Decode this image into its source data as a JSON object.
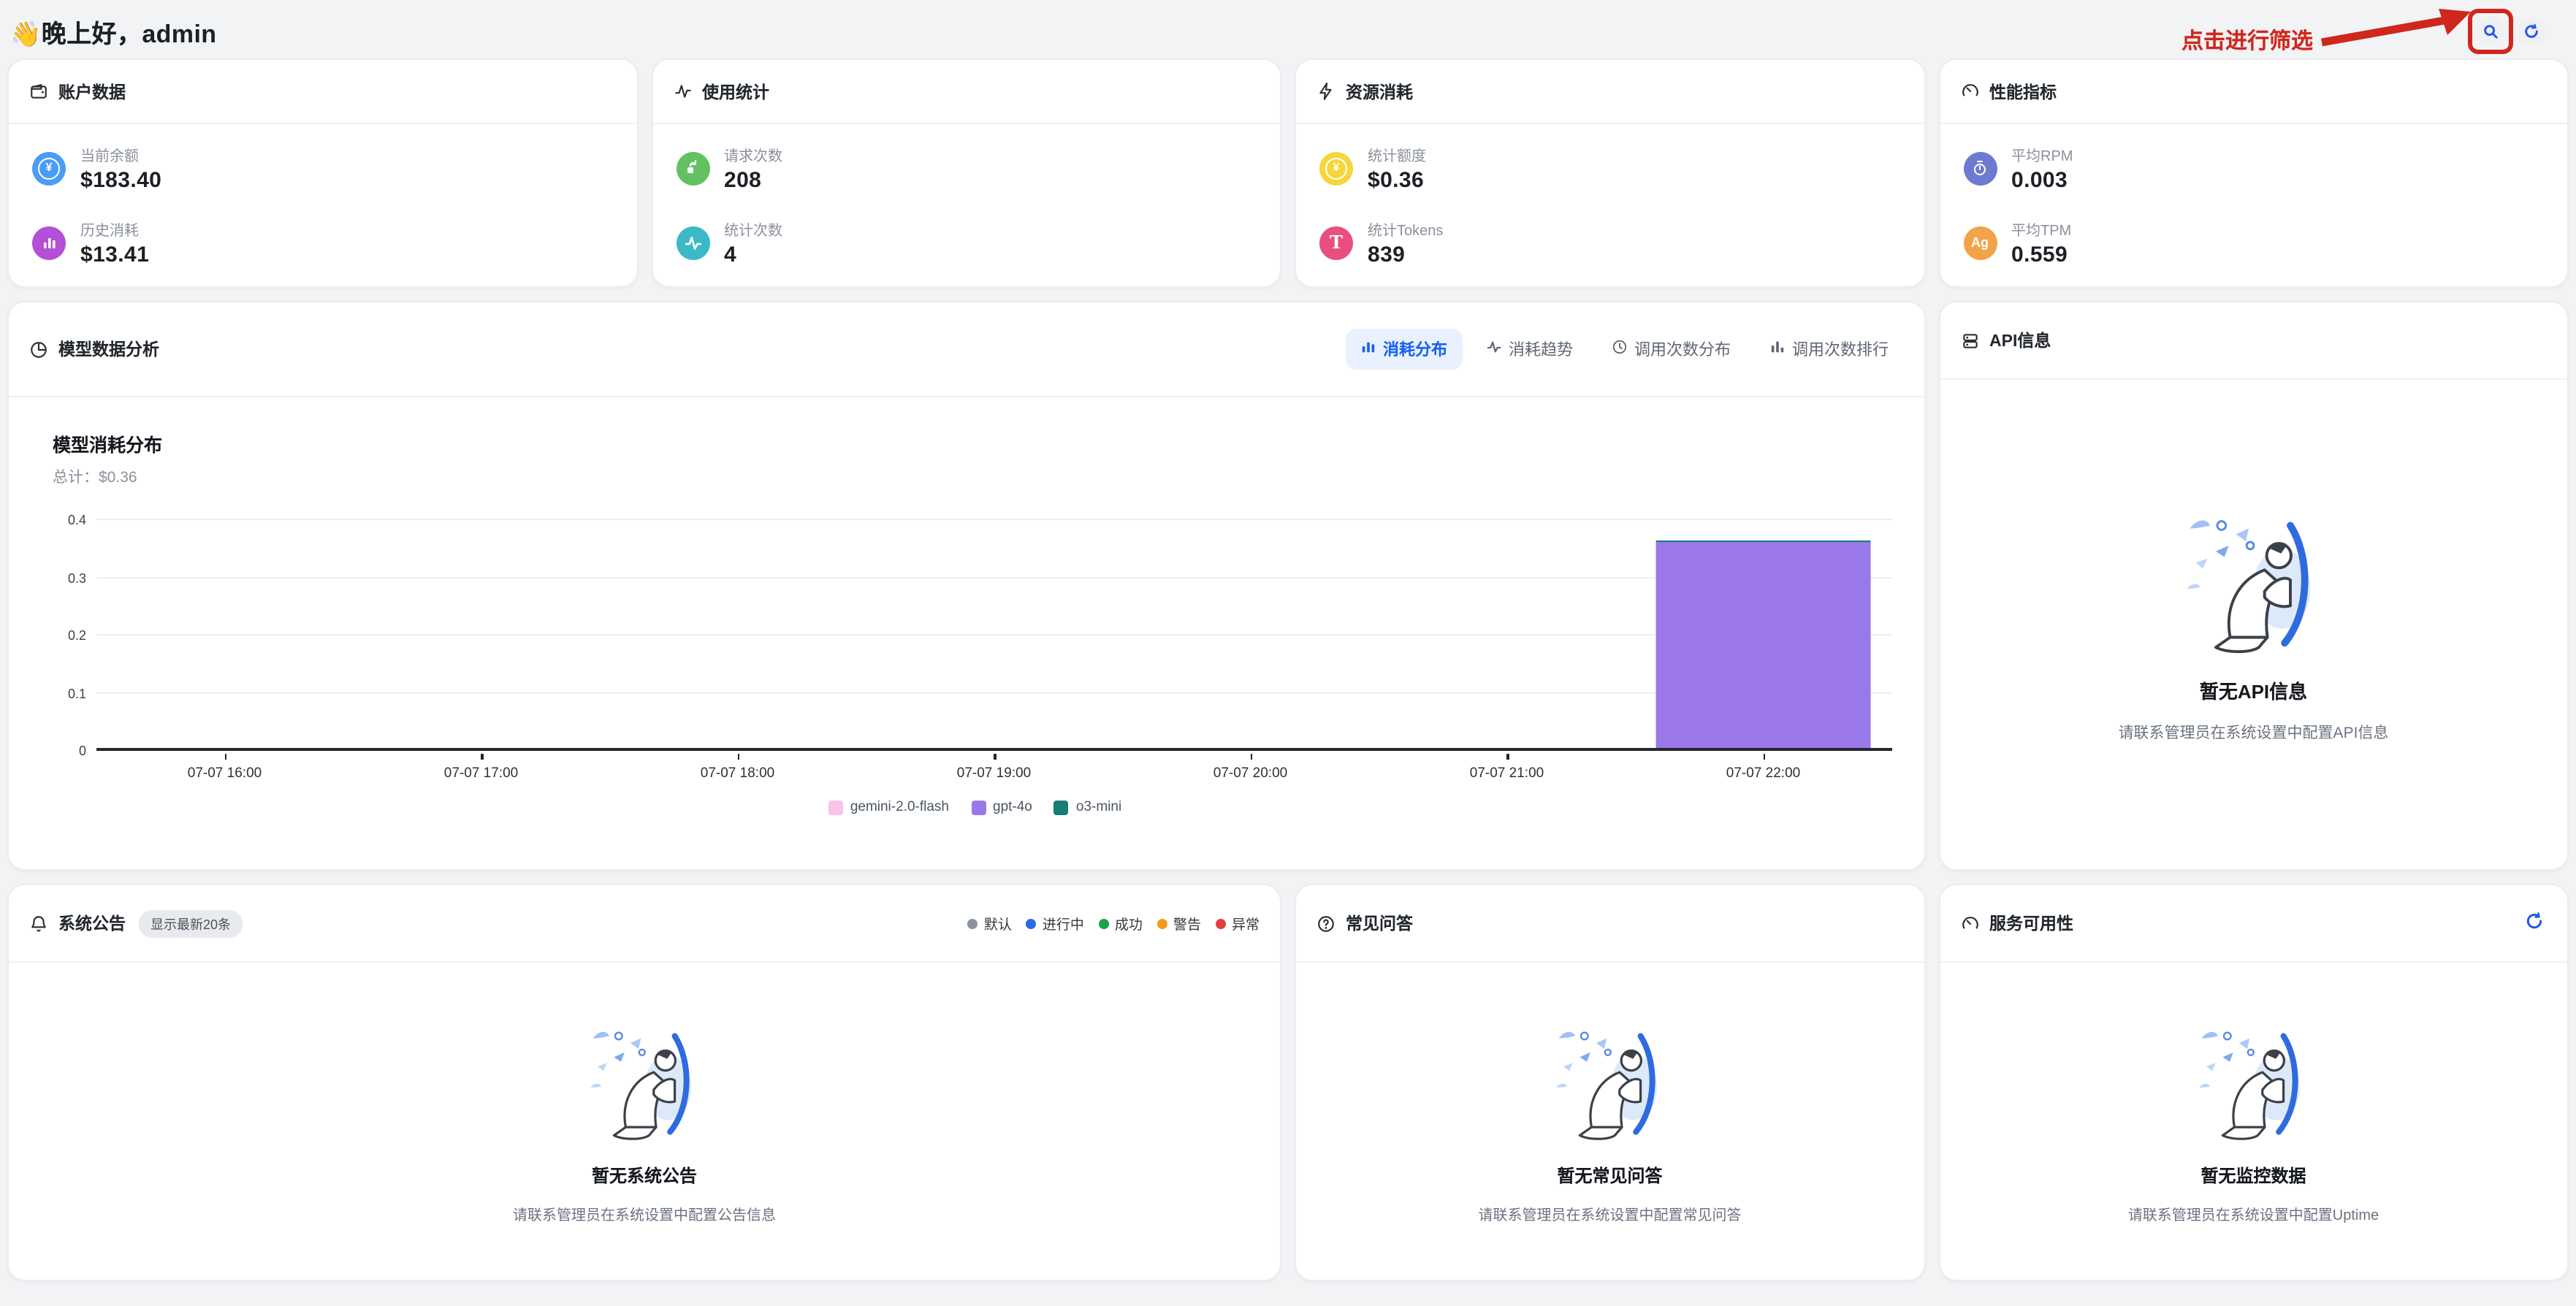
{
  "header": {
    "greeting": "👋晚上好，admin"
  },
  "annotation": {
    "label": "点击进行筛选",
    "color": "#d0271c"
  },
  "stat_cards": [
    {
      "title": "账户数据",
      "icon": "wallet-icon",
      "items": [
        {
          "icon": "currency-circle-icon",
          "icon_bg": "#4b9cf5",
          "label": "当前余额",
          "value": "$183.40",
          "glyph": "¥"
        },
        {
          "icon": "bar-chart-icon",
          "icon_bg": "#b44fd8",
          "label": "历史消耗",
          "value": "$13.41"
        }
      ]
    },
    {
      "title": "使用统计",
      "icon": "activity-icon",
      "items": [
        {
          "icon": "request-arrow-icon",
          "icon_bg": "#63c25f",
          "label": "请求次数",
          "value": "208"
        },
        {
          "icon": "pulse-icon",
          "icon_bg": "#3bbac6",
          "label": "统计次数",
          "value": "4"
        }
      ]
    },
    {
      "title": "资源消耗",
      "icon": "lightning-icon",
      "items": [
        {
          "icon": "coin-circle-icon",
          "icon_bg": "#f6d63c",
          "label": "统计额度",
          "value": "$0.36",
          "glyph": "¥"
        },
        {
          "icon": "token-icon",
          "icon_bg": "#e94f7e",
          "label": "统计Tokens",
          "value": "839",
          "glyph": "T"
        }
      ]
    },
    {
      "title": "性能指标",
      "icon": "gauge-icon",
      "items": [
        {
          "icon": "stopwatch-icon",
          "icon_bg": "#6d7ad2",
          "label": "平均RPM",
          "value": "0.003"
        },
        {
          "icon": "ag-icon",
          "icon_bg": "#f2a348",
          "label": "平均TPM",
          "value": "0.559",
          "glyph": "Ag"
        }
      ]
    }
  ],
  "analysis": {
    "title": "模型数据分析",
    "tabs": [
      {
        "label": "消耗分布",
        "active": true
      },
      {
        "label": "消耗趋势",
        "active": false
      },
      {
        "label": "调用次数分布",
        "active": false
      },
      {
        "label": "调用次数排行",
        "active": false
      }
    ],
    "active_color": "#1861f2"
  },
  "chart_data": {
    "type": "bar",
    "stacked": true,
    "title": "模型消耗分布",
    "subtitle": "总计：$0.36",
    "categories": [
      "07-07 16:00",
      "07-07 17:00",
      "07-07 18:00",
      "07-07 19:00",
      "07-07 20:00",
      "07-07 21:00",
      "07-07 22:00"
    ],
    "series": [
      {
        "name": "gemini-2.0-flash",
        "color": "#f8c3e6",
        "values": [
          0,
          0,
          0,
          0,
          0,
          0,
          0
        ]
      },
      {
        "name": "gpt-4o",
        "color": "#9b78e8",
        "values": [
          0,
          0,
          0,
          0,
          0,
          0,
          0.357
        ]
      },
      {
        "name": "o3-mini",
        "color": "#177d76",
        "values": [
          0,
          0,
          0,
          0,
          0,
          0,
          0.003
        ]
      }
    ],
    "xlabel": "",
    "ylabel": "",
    "ylim": [
      0,
      0.4
    ],
    "yticks": [
      0,
      0.1,
      0.2,
      0.3,
      0.4
    ],
    "grid": true,
    "legend_position": "bottom"
  },
  "api_info": {
    "title": "API信息",
    "empty_title": "暂无API信息",
    "empty_desc": "请联系管理员在系统设置中配置API信息"
  },
  "announcements": {
    "title": "系统公告",
    "badge": "显示最新20条",
    "legend": [
      {
        "label": "默认",
        "color": "#8b929c"
      },
      {
        "label": "进行中",
        "color": "#2d68e8"
      },
      {
        "label": "成功",
        "color": "#17a34a"
      },
      {
        "label": "警告",
        "color": "#f29b1d"
      },
      {
        "label": "异常",
        "color": "#e33e3e"
      }
    ],
    "empty_title": "暂无系统公告",
    "empty_desc": "请联系管理员在系统设置中配置公告信息"
  },
  "faq": {
    "title": "常见问答",
    "empty_title": "暂无常见问答",
    "empty_desc": "请联系管理员在系统设置中配置常见问答"
  },
  "uptime": {
    "title": "服务可用性",
    "empty_title": "暂无监控数据",
    "empty_desc": "请联系管理员在系统设置中配置Uptime"
  },
  "colors": {
    "accent_blue": "#2458e6",
    "annotation_red": "#d0271c",
    "page_bg": "#f2f3f5"
  }
}
